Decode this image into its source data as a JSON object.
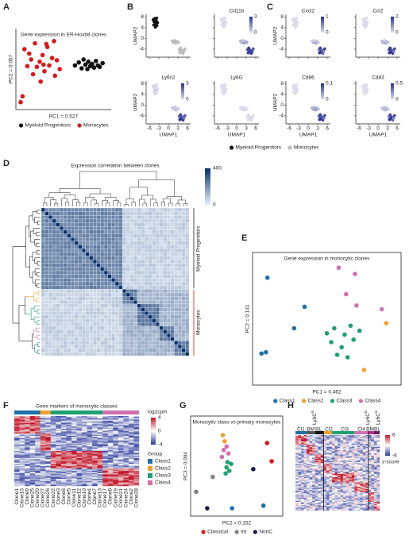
{
  "chart_data": [
    {
      "type": "scatter",
      "panel": "A",
      "title": "Gene expression in ER-Hoxb8 clones",
      "xlabel": "PC1 = 0.527",
      "ylabel": "PC2 = 0.057",
      "frame": "open",
      "xlim": [
        0,
        10
      ],
      "ylim": [
        0,
        11
      ],
      "series": [
        {
          "name": "Myeloid Progenitors",
          "color": "#111111",
          "x": [
            6.2,
            6.6,
            6.9,
            7.1,
            7.3,
            7.5,
            7.6,
            7.8,
            8.0,
            8.2,
            8.4,
            8.6,
            8.8,
            9.1
          ],
          "y": [
            6.0,
            6.4,
            5.6,
            6.8,
            6.1,
            5.5,
            6.5,
            5.9,
            6.2,
            5.7,
            6.6,
            6.0,
            5.8,
            6.3
          ]
        },
        {
          "name": "Monocytes",
          "color": "#d7191c",
          "x": [
            0.5,
            0.9,
            1.4,
            1.6,
            2.0,
            2.2,
            2.5,
            2.8,
            3.0,
            3.3,
            3.5,
            3.8,
            4.1,
            4.3,
            4.6,
            1.8,
            2.6,
            3.2,
            0.7,
            4.0,
            1.2,
            2.9
          ],
          "y": [
            1.0,
            8.2,
            7.6,
            6.8,
            9.0,
            5.8,
            6.5,
            7.4,
            5.2,
            8.5,
            6.0,
            7.0,
            4.6,
            6.7,
            5.5,
            4.8,
            3.8,
            8.9,
            1.8,
            9.3,
            5.9,
            6.1
          ]
        }
      ]
    },
    {
      "type": "umap",
      "panel": "B",
      "xlabel": "UMAP1",
      "ylabel": "UMAP2",
      "xlim": [
        -7,
        7
      ],
      "ylim": [
        -7,
        9
      ],
      "xticks": [
        -6,
        -3,
        0,
        3,
        6
      ],
      "yticks": [
        -4,
        0,
        4,
        8
      ],
      "series": [
        {
          "name": "Myeloid Progenitors",
          "color": "#111111",
          "x": [
            -4.8,
            -4.5,
            -4.3,
            -4.0,
            -3.8,
            -3.6,
            -3.4,
            -4.6,
            -4.1,
            -3.7
          ],
          "y": [
            7.0,
            6.2,
            7.4,
            5.5,
            6.6,
            4.8,
            5.9,
            5.0,
            4.2,
            7.6
          ]
        },
        {
          "name": "Monocytes",
          "color": "#bdbdbd",
          "x": [
            1.2,
            1.6,
            2.0,
            2.4,
            2.8,
            3.2,
            3.4,
            3.8,
            4.0,
            4.3,
            4.6,
            4.9,
            5.2,
            3.6
          ],
          "y": [
            -1.0,
            -1.6,
            -0.8,
            -1.8,
            -1.2,
            -1.5,
            -4.2,
            -3.6,
            -5.0,
            -4.4,
            -5.6,
            -4.8,
            -3.9,
            -5.4
          ]
        }
      ],
      "panels": [
        {
          "gene": "Cd11b",
          "cbar_ticks": [
            0,
            3
          ],
          "values": [
            0,
            0,
            0,
            0,
            0,
            0,
            0,
            0,
            0,
            0,
            0.6,
            0.8,
            0.5,
            1.0,
            0.7,
            0.9,
            2.4,
            2.8,
            3.0,
            2.6,
            2.9,
            2.5,
            2.2,
            2.7
          ]
        },
        {
          "gene": "Ly6c2",
          "cbar_ticks": [
            0,
            3
          ],
          "values": [
            0.2,
            0,
            0,
            0.3,
            0,
            0,
            0.1,
            0,
            0.2,
            0,
            0.3,
            0.2,
            0.4,
            0.5,
            0.3,
            0.2,
            2.0,
            2.6,
            3.0,
            2.4,
            2.8,
            1.8,
            2.2,
            2.9
          ]
        },
        {
          "gene": "Ly6G",
          "values": [
            0,
            0,
            0,
            0,
            0,
            0,
            0,
            0,
            0,
            0,
            0,
            0,
            0,
            0,
            0,
            0,
            0,
            0,
            0,
            0,
            0,
            0,
            0,
            0
          ]
        }
      ]
    },
    {
      "type": "umap",
      "panel": "C",
      "xlabel": "UMAP1",
      "ylabel": "UMAP2",
      "xlim": [
        -7,
        7
      ],
      "ylim": [
        -7,
        9
      ],
      "xticks": [
        -6,
        -3,
        0,
        3,
        6
      ],
      "yticks": [
        -4,
        0,
        4,
        8
      ],
      "panels": [
        {
          "gene": "Cxcl2",
          "cbar_ticks": [
            0,
            1
          ],
          "values": [
            0,
            0,
            0,
            0,
            0,
            0,
            0,
            0,
            0,
            0,
            0.1,
            0.2,
            0.1,
            0.3,
            0.2,
            0.1,
            0.6,
            0.9,
            1.0,
            0.8,
            0.7,
            0.5,
            0.9,
            1.0
          ]
        },
        {
          "gene": "Ccl2",
          "cbar_ticks": [
            0,
            2
          ],
          "values": [
            0,
            0,
            0,
            0,
            0,
            0,
            0,
            0,
            0,
            0,
            0.3,
            0.5,
            0.2,
            0.6,
            0.4,
            0.3,
            1.5,
            1.9,
            2.0,
            1.7,
            1.8,
            1.2,
            1.6,
            2.0
          ]
        },
        {
          "gene": "Cd86",
          "cbar_ticks": [
            0,
            0.1
          ],
          "values": [
            0,
            0,
            0,
            0,
            0,
            0,
            0,
            0,
            0,
            0,
            0.02,
            0.03,
            0.02,
            0.04,
            0.03,
            0.02,
            0.07,
            0.09,
            0.1,
            0.08,
            0.09,
            0.06,
            0.08,
            0.1
          ]
        },
        {
          "gene": "Cd83",
          "cbar_ticks": [
            0,
            0.5
          ],
          "values": [
            0,
            0,
            0,
            0,
            0,
            0,
            0,
            0,
            0,
            0,
            0.05,
            0.1,
            0.08,
            0.12,
            0.1,
            0.06,
            0.3,
            0.4,
            0.5,
            0.45,
            0.35,
            0.25,
            0.4,
            0.5
          ]
        }
      ]
    },
    {
      "type": "heatmap",
      "panel": "D",
      "title": "Expression correlation between clones",
      "colorbar_ticks": [
        0,
        400
      ],
      "row_groups": [
        "Myeloid Progenitors",
        "Monocytes"
      ]
    },
    {
      "type": "scatter",
      "panel": "E",
      "title": "Gene expression in monocytic clones",
      "xlabel": "PC1 = 0.462",
      "ylabel": "PC2 = 0.141",
      "frame": "box",
      "xlim": [
        0,
        10
      ],
      "ylim": [
        0,
        10.5
      ],
      "series": [
        {
          "name": "Class1",
          "color": "#1f6fa8",
          "x": [
            1.0,
            0.6,
            0.9,
            2.8,
            3.5
          ],
          "y": [
            8.5,
            2.5,
            2.6,
            4.5,
            6.2
          ]
        },
        {
          "name": "Class2",
          "color": "#f0a030",
          "x": [
            9.0,
            7.5
          ],
          "y": [
            4.9,
            1.2
          ]
        },
        {
          "name": "Class3",
          "color": "#20a070",
          "x": [
            5.5,
            6.2,
            6.6,
            5.3,
            6.0,
            6.8,
            5.7,
            6.4,
            7.2,
            5.0
          ],
          "y": [
            4.5,
            4.0,
            4.7,
            3.4,
            3.0,
            3.6,
            2.4,
            2.2,
            4.3,
            4.1
          ]
        },
        {
          "name": "Class4",
          "color": "#d070b0",
          "x": [
            5.8,
            6.9,
            6.3,
            7.0,
            8.7
          ],
          "y": [
            9.3,
            8.8,
            7.2,
            6.3,
            6.0
          ]
        }
      ]
    },
    {
      "type": "heatmap",
      "panel": "F",
      "title": "Gene markers of monocytic classes",
      "colorbar_title": "log2cpm",
      "colorbar_ticks": [
        -4,
        0,
        4
      ],
      "legend_title": "Group",
      "groups": [
        {
          "name": "Class1",
          "color": "#1f6fa8"
        },
        {
          "name": "Class2",
          "color": "#f0a030"
        },
        {
          "name": "Class3",
          "color": "#20a070"
        },
        {
          "name": "Class4",
          "color": "#d070b0"
        }
      ],
      "columns": [
        "Clone1",
        "Clone15",
        "Clone9",
        "Clone25",
        "Clone20",
        "Clone27",
        "Clone26",
        "Clone22",
        "Clone3",
        "Clone6",
        "Clone5",
        "Clone11",
        "Clone12",
        "Clone10",
        "Clone4",
        "Clone7",
        "Clone13",
        "Clone17",
        "Clone8",
        "Clone19",
        "Clone21",
        "Clone24",
        "Clone2",
        "Clone28"
      ],
      "column_class": [
        "Class1",
        "Class1",
        "Class1",
        "Class1",
        "Class1",
        "Class2",
        "Class2",
        "Class3",
        "Class3",
        "Class3",
        "Class3",
        "Class3",
        "Class3",
        "Class3",
        "Class3",
        "Class3",
        "Class3",
        "Class4",
        "Class4",
        "Class4",
        "Class4",
        "Class4",
        "Class4",
        "Class4"
      ]
    },
    {
      "type": "scatter",
      "panel": "G",
      "title": "Monocytic class vs primary monocytes",
      "xlabel": "PC2 = 0.152",
      "ylabel": "PC3 = 0.094",
      "frame": "box",
      "xlim": [
        0,
        10
      ],
      "ylim": [
        0,
        11.5
      ],
      "series": [
        {
          "name": "Class1",
          "color": "#1f6fa8",
          "x": [
            4.5,
            7.9
          ],
          "y": [
            0.9,
            1.2
          ]
        },
        {
          "name": "Class2",
          "color": "#f0a030",
          "x": [
            3.5,
            3.7
          ],
          "y": [
            9.3,
            8.6
          ]
        },
        {
          "name": "Class3",
          "color": "#20a070",
          "x": [
            3.9,
            4.2,
            4.0,
            4.4,
            3.8
          ],
          "y": [
            5.6,
            5.2,
            6.2,
            6.0,
            4.9
          ]
        },
        {
          "name": "Class4",
          "color": "#d070b0",
          "x": [
            3.6,
            4.1,
            3.9,
            3.4
          ],
          "y": [
            7.6,
            7.2,
            8.0,
            6.8
          ]
        }
      ],
      "reference_series": [
        {
          "name": "Classical",
          "color": "#d7191c",
          "x": [
            8.3,
            8.8
          ],
          "y": [
            8.4,
            6.3
          ]
        },
        {
          "name": "Int",
          "color": "#808080",
          "x": [
            0.6,
            2.4
          ],
          "y": [
            2.8,
            4.5
          ]
        },
        {
          "name": "NonC",
          "color": "#1a1a4e",
          "x": [
            1.8,
            6.8
          ],
          "y": [
            0.9,
            5.4
          ]
        }
      ]
    },
    {
      "type": "heatmap",
      "panel": "H",
      "columns": [
        "Cl1",
        "BM",
        "BL",
        "Cl2",
        "Cl3",
        "Cl4",
        "BM",
        "BL"
      ],
      "superlabels": [
        {
          "base": "Ly6C",
          "sup": "hi"
        },
        {
          "base": "Ly6C",
          "sup": "hi"
        },
        {
          "base": "Ly6C",
          "sup": "lo"
        }
      ],
      "colorbar_ticks": [
        -6,
        6
      ],
      "colorbar_title": "z-score"
    }
  ]
}
